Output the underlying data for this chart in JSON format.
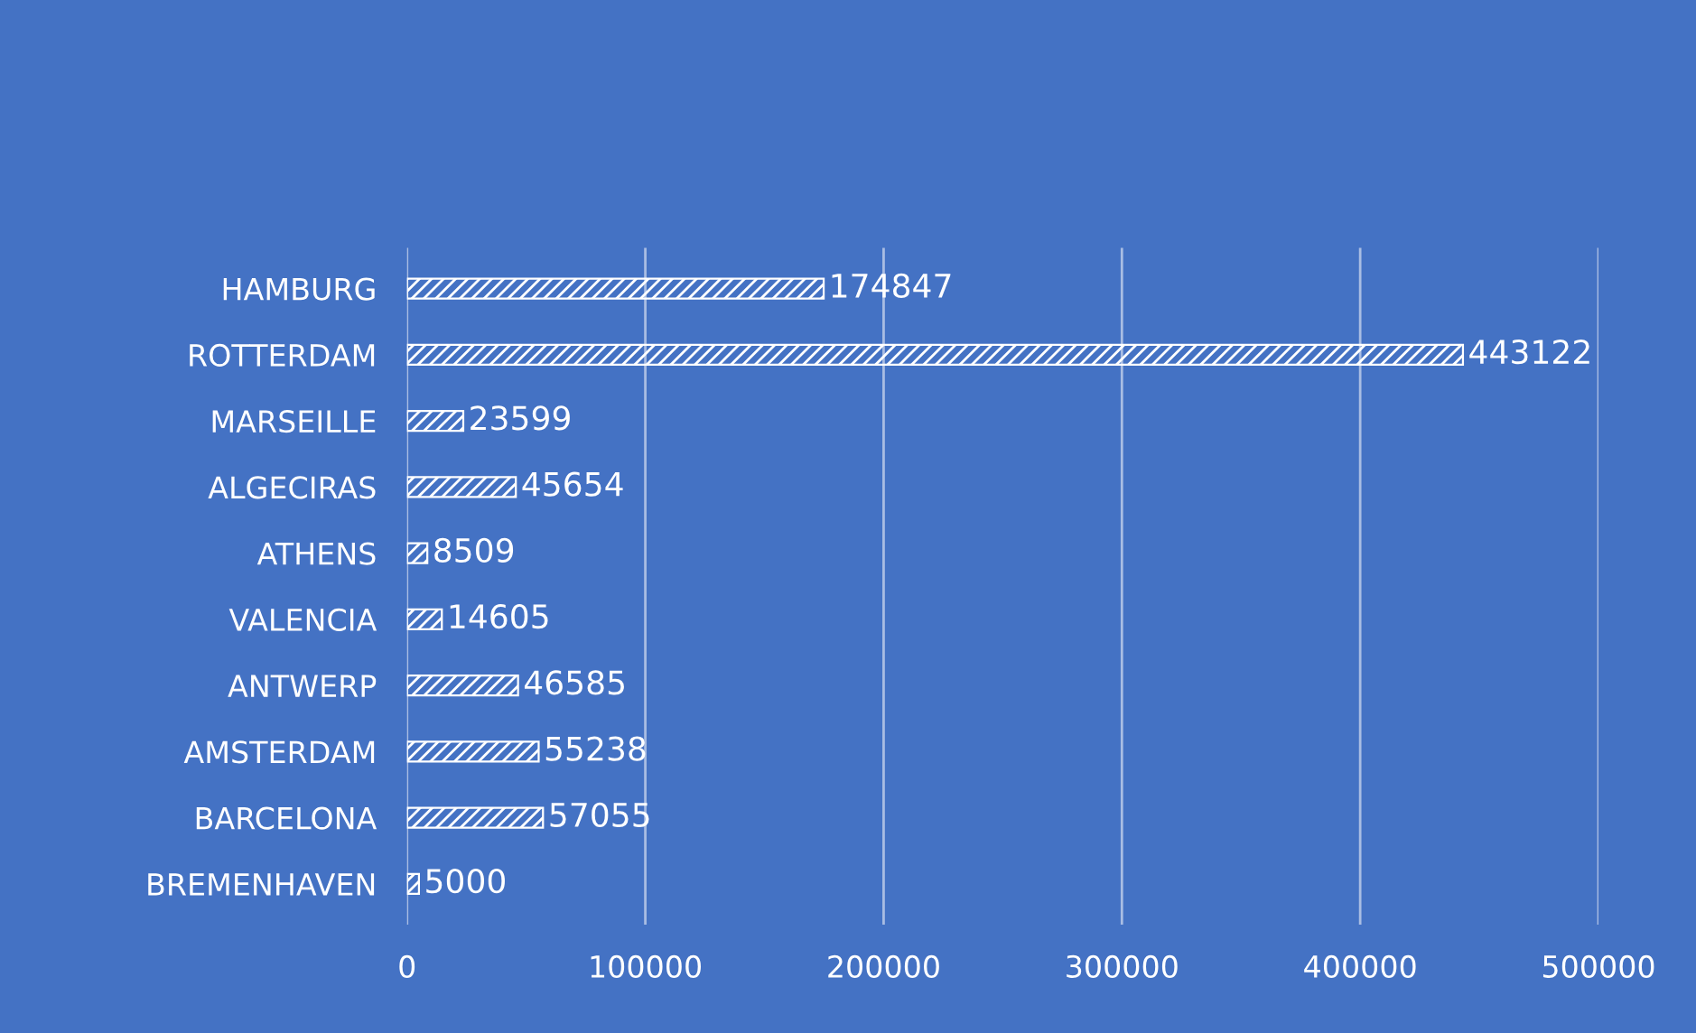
{
  "chart_data": {
    "type": "bar",
    "orientation": "horizontal",
    "categories": [
      "HAMBURG",
      "ROTTERDAM",
      "MARSEILLE",
      "ALGECIRAS",
      "ATHENS",
      "VALENCIA",
      "ANTWERP",
      "AMSTERDAM",
      "BARCELONA",
      "BREMENHAVEN"
    ],
    "values": [
      174847,
      443122,
      23599,
      45654,
      8509,
      14605,
      46585,
      55238,
      57055,
      5000
    ],
    "color": "#ffffff",
    "xlim": [
      0,
      500000
    ],
    "xticks": [
      0,
      100000,
      200000,
      300000,
      400000,
      500000
    ],
    "grid": "x",
    "data_labels": true
  }
}
